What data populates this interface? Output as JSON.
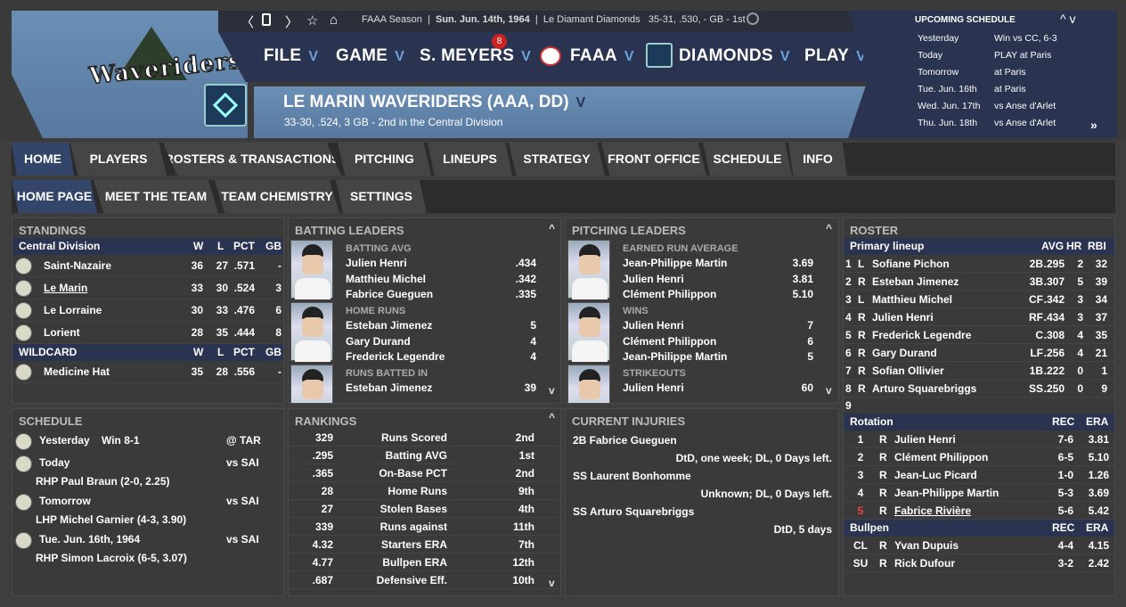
{
  "topbar": {
    "season": "FAAA Season",
    "date": "Sun. Jun. 14th, 1964",
    "team": "Le Diamant Diamonds",
    "record": "35-31, .530, - GB - 1st"
  },
  "menu": {
    "file": "FILE",
    "game": "GAME",
    "manager": "S. MEYERS",
    "manager_badge": "8",
    "league": "FAAA",
    "diamonds": "DIAMONDS",
    "play": "PLAY"
  },
  "logo_text": "Waveriders",
  "team": {
    "title": "LE MARIN WAVERIDERS (AAA, DD)",
    "subtitle": "33-30, .524, 3 GB - 2nd in the  Central Division",
    "logo_label": "Le Diamant"
  },
  "upcoming": {
    "title": "UPCOMING SCHEDULE",
    "items": [
      {
        "day": "Yesterday",
        "event": "Win vs CC, 6-3"
      },
      {
        "day": "Today",
        "event": "PLAY at Paris"
      },
      {
        "day": "Tomorrow",
        "event": "at Paris"
      },
      {
        "day": "Tue. Jun. 16th",
        "event": "at Paris"
      },
      {
        "day": "Wed. Jun. 17th",
        "event": "vs Anse d'Arlet"
      },
      {
        "day": "Thu. Jun. 18th",
        "event": "vs Anse d'Arlet"
      }
    ]
  },
  "nav1": [
    "HOME",
    "PLAYERS",
    "ROSTERS & TRANSACTIONS",
    "PITCHING",
    "LINEUPS",
    "STRATEGY",
    "FRONT OFFICE",
    "SCHEDULE",
    "INFO"
  ],
  "nav2": [
    "HOME PAGE",
    "MEET THE TEAM",
    "TEAM CHEMISTRY",
    "SETTINGS"
  ],
  "standings": {
    "title": "STANDINGS",
    "division": "Central Division",
    "cols": [
      "W",
      "L",
      "PCT",
      "GB"
    ],
    "rows": [
      {
        "team": "Saint-Nazaire",
        "w": "36",
        "l": "27",
        "pct": ".571",
        "gb": "-"
      },
      {
        "team": "Le Marin",
        "w": "33",
        "l": "30",
        "pct": ".524",
        "gb": "3"
      },
      {
        "team": "Le Lorraine",
        "w": "30",
        "l": "33",
        "pct": ".476",
        "gb": "6"
      },
      {
        "team": "Lorient",
        "w": "28",
        "l": "35",
        "pct": ".444",
        "gb": "8"
      }
    ],
    "wildcard": "WILDCARD",
    "wc_rows": [
      {
        "team": "Medicine Hat",
        "w": "35",
        "l": "28",
        "pct": ".556",
        "gb": "-"
      }
    ]
  },
  "batting": {
    "title": "BATTING LEADERS",
    "groups": [
      {
        "label": "BATTING AVG",
        "rows": [
          {
            "name": "Julien Henri",
            "val": ".434"
          },
          {
            "name": "Matthieu Michel",
            "val": ".342"
          },
          {
            "name": "Fabrice Gueguen",
            "val": ".335"
          }
        ]
      },
      {
        "label": "HOME RUNS",
        "rows": [
          {
            "name": "Esteban Jimenez",
            "val": "5"
          },
          {
            "name": "Gary Durand",
            "val": "4"
          },
          {
            "name": "Frederick Legendre",
            "val": "4"
          }
        ]
      },
      {
        "label": "RUNS BATTED IN",
        "rows": [
          {
            "name": "Esteban Jimenez",
            "val": "39"
          }
        ]
      }
    ]
  },
  "pitching": {
    "title": "PITCHING LEADERS",
    "groups": [
      {
        "label": "EARNED RUN AVERAGE",
        "rows": [
          {
            "name": "Jean-Philippe Martin",
            "val": "3.69"
          },
          {
            "name": "Julien Henri",
            "val": "3.81"
          },
          {
            "name": "Clément Philippon",
            "val": "5.10"
          }
        ]
      },
      {
        "label": "WINS",
        "rows": [
          {
            "name": "Julien Henri",
            "val": "7"
          },
          {
            "name": "Clément Philippon",
            "val": "6"
          },
          {
            "name": "Jean-Philippe Martin",
            "val": "5"
          }
        ]
      },
      {
        "label": "STRIKEOUTS",
        "rows": [
          {
            "name": "Julien Henri",
            "val": "60"
          }
        ]
      }
    ]
  },
  "roster": {
    "title": "ROSTER",
    "lineup_head": "Primary lineup",
    "lineup_cols": [
      "AVG",
      "HR",
      "RBI"
    ],
    "lineup": [
      {
        "n": "1",
        "h": "L",
        "name": "Sofiane Pichon",
        "pos": "2B",
        "avg": ".295",
        "hr": "2",
        "rbi": "32"
      },
      {
        "n": "2",
        "h": "R",
        "name": "Esteban Jimenez",
        "pos": "3B",
        "avg": ".307",
        "hr": "5",
        "rbi": "39"
      },
      {
        "n": "3",
        "h": "L",
        "name": "Matthieu Michel",
        "pos": "CF",
        "avg": ".342",
        "hr": "3",
        "rbi": "34"
      },
      {
        "n": "4",
        "h": "R",
        "name": "Julien Henri",
        "pos": "RF",
        "avg": ".434",
        "hr": "3",
        "rbi": "37"
      },
      {
        "n": "5",
        "h": "R",
        "name": "Frederick Legendre",
        "pos": "C",
        "avg": ".308",
        "hr": "4",
        "rbi": "35"
      },
      {
        "n": "6",
        "h": "R",
        "name": "Gary Durand",
        "pos": "LF",
        "avg": ".256",
        "hr": "4",
        "rbi": "21"
      },
      {
        "n": "7",
        "h": "R",
        "name": "Sofian Ollivier",
        "pos": "1B",
        "avg": ".222",
        "hr": "0",
        "rbi": "1"
      },
      {
        "n": "8",
        "h": "R",
        "name": "Arturo Squarebriggs",
        "pos": "SS",
        "avg": ".250",
        "hr": "0",
        "rbi": "9"
      }
    ],
    "lineup_extra": "9",
    "rotation_head": "Rotation",
    "rot_cols": [
      "REC",
      "ERA"
    ],
    "rotation": [
      {
        "n": "1",
        "h": "R",
        "name": "Julien Henri",
        "rec": "7-6",
        "era": "3.81"
      },
      {
        "n": "2",
        "h": "R",
        "name": "Clément Philippon",
        "rec": "6-5",
        "era": "5.10"
      },
      {
        "n": "3",
        "h": "R",
        "name": "Jean-Luc Picard",
        "rec": "1-0",
        "era": "1.26"
      },
      {
        "n": "4",
        "h": "R",
        "name": "Jean-Philippe Martin",
        "rec": "5-3",
        "era": "3.69"
      },
      {
        "n": "5",
        "h": "R",
        "name": "Fabrice Rivière",
        "rec": "5-6",
        "era": "5.42"
      }
    ],
    "bullpen_head": "Bullpen",
    "bullpen": [
      {
        "n": "CL",
        "h": "R",
        "name": "Yvan Dupuis",
        "rec": "4-4",
        "era": "4.15"
      },
      {
        "n": "SU",
        "h": "R",
        "name": "Rick Dufour",
        "rec": "3-2",
        "era": "2.42"
      }
    ]
  },
  "schedule": {
    "title": "SCHEDULE",
    "items": [
      {
        "day": "Yesterday",
        "result": "Win 8-1",
        "opp": "@ TAR",
        "note": ""
      },
      {
        "day": "Today",
        "result": "",
        "opp": "vs SAI",
        "note": "RHP Paul Braun (2-0, 2.25)"
      },
      {
        "day": "Tomorrow",
        "result": "",
        "opp": "vs SAI",
        "note": "LHP Michel Garnier (4-3, 3.90)"
      },
      {
        "day": "Tue. Jun. 16th, 1964",
        "result": "",
        "opp": "vs SAI",
        "note": "RHP Simon Lacroix (6-5, 3.07)"
      }
    ]
  },
  "rankings": {
    "title": "RANKINGS",
    "rows": [
      {
        "val": "329",
        "stat": "Runs Scored",
        "rank": "2nd"
      },
      {
        "val": ".295",
        "stat": "Batting AVG",
        "rank": "1st"
      },
      {
        "val": ".365",
        "stat": "On-Base PCT",
        "rank": "2nd"
      },
      {
        "val": "28",
        "stat": "Home Runs",
        "rank": "9th"
      },
      {
        "val": "27",
        "stat": "Stolen Bases",
        "rank": "4th"
      },
      {
        "val": "339",
        "stat": "Runs against",
        "rank": "11th"
      },
      {
        "val": "4.32",
        "stat": "Starters ERA",
        "rank": "7th"
      },
      {
        "val": "4.77",
        "stat": "Bullpen ERA",
        "rank": "12th"
      },
      {
        "val": ".687",
        "stat": "Defensive Eff.",
        "rank": "10th"
      }
    ]
  },
  "injuries": {
    "title": "CURRENT INJURIES",
    "items": [
      {
        "player": "2B Fabrice Gueguen",
        "detail": "DtD, one week; DL, 0 Days left."
      },
      {
        "player": "SS Laurent Bonhomme",
        "detail": "Unknown; DL, 0 Days left."
      },
      {
        "player": "SS Arturo Squarebriggs",
        "detail": "DtD, 5 days"
      }
    ]
  }
}
